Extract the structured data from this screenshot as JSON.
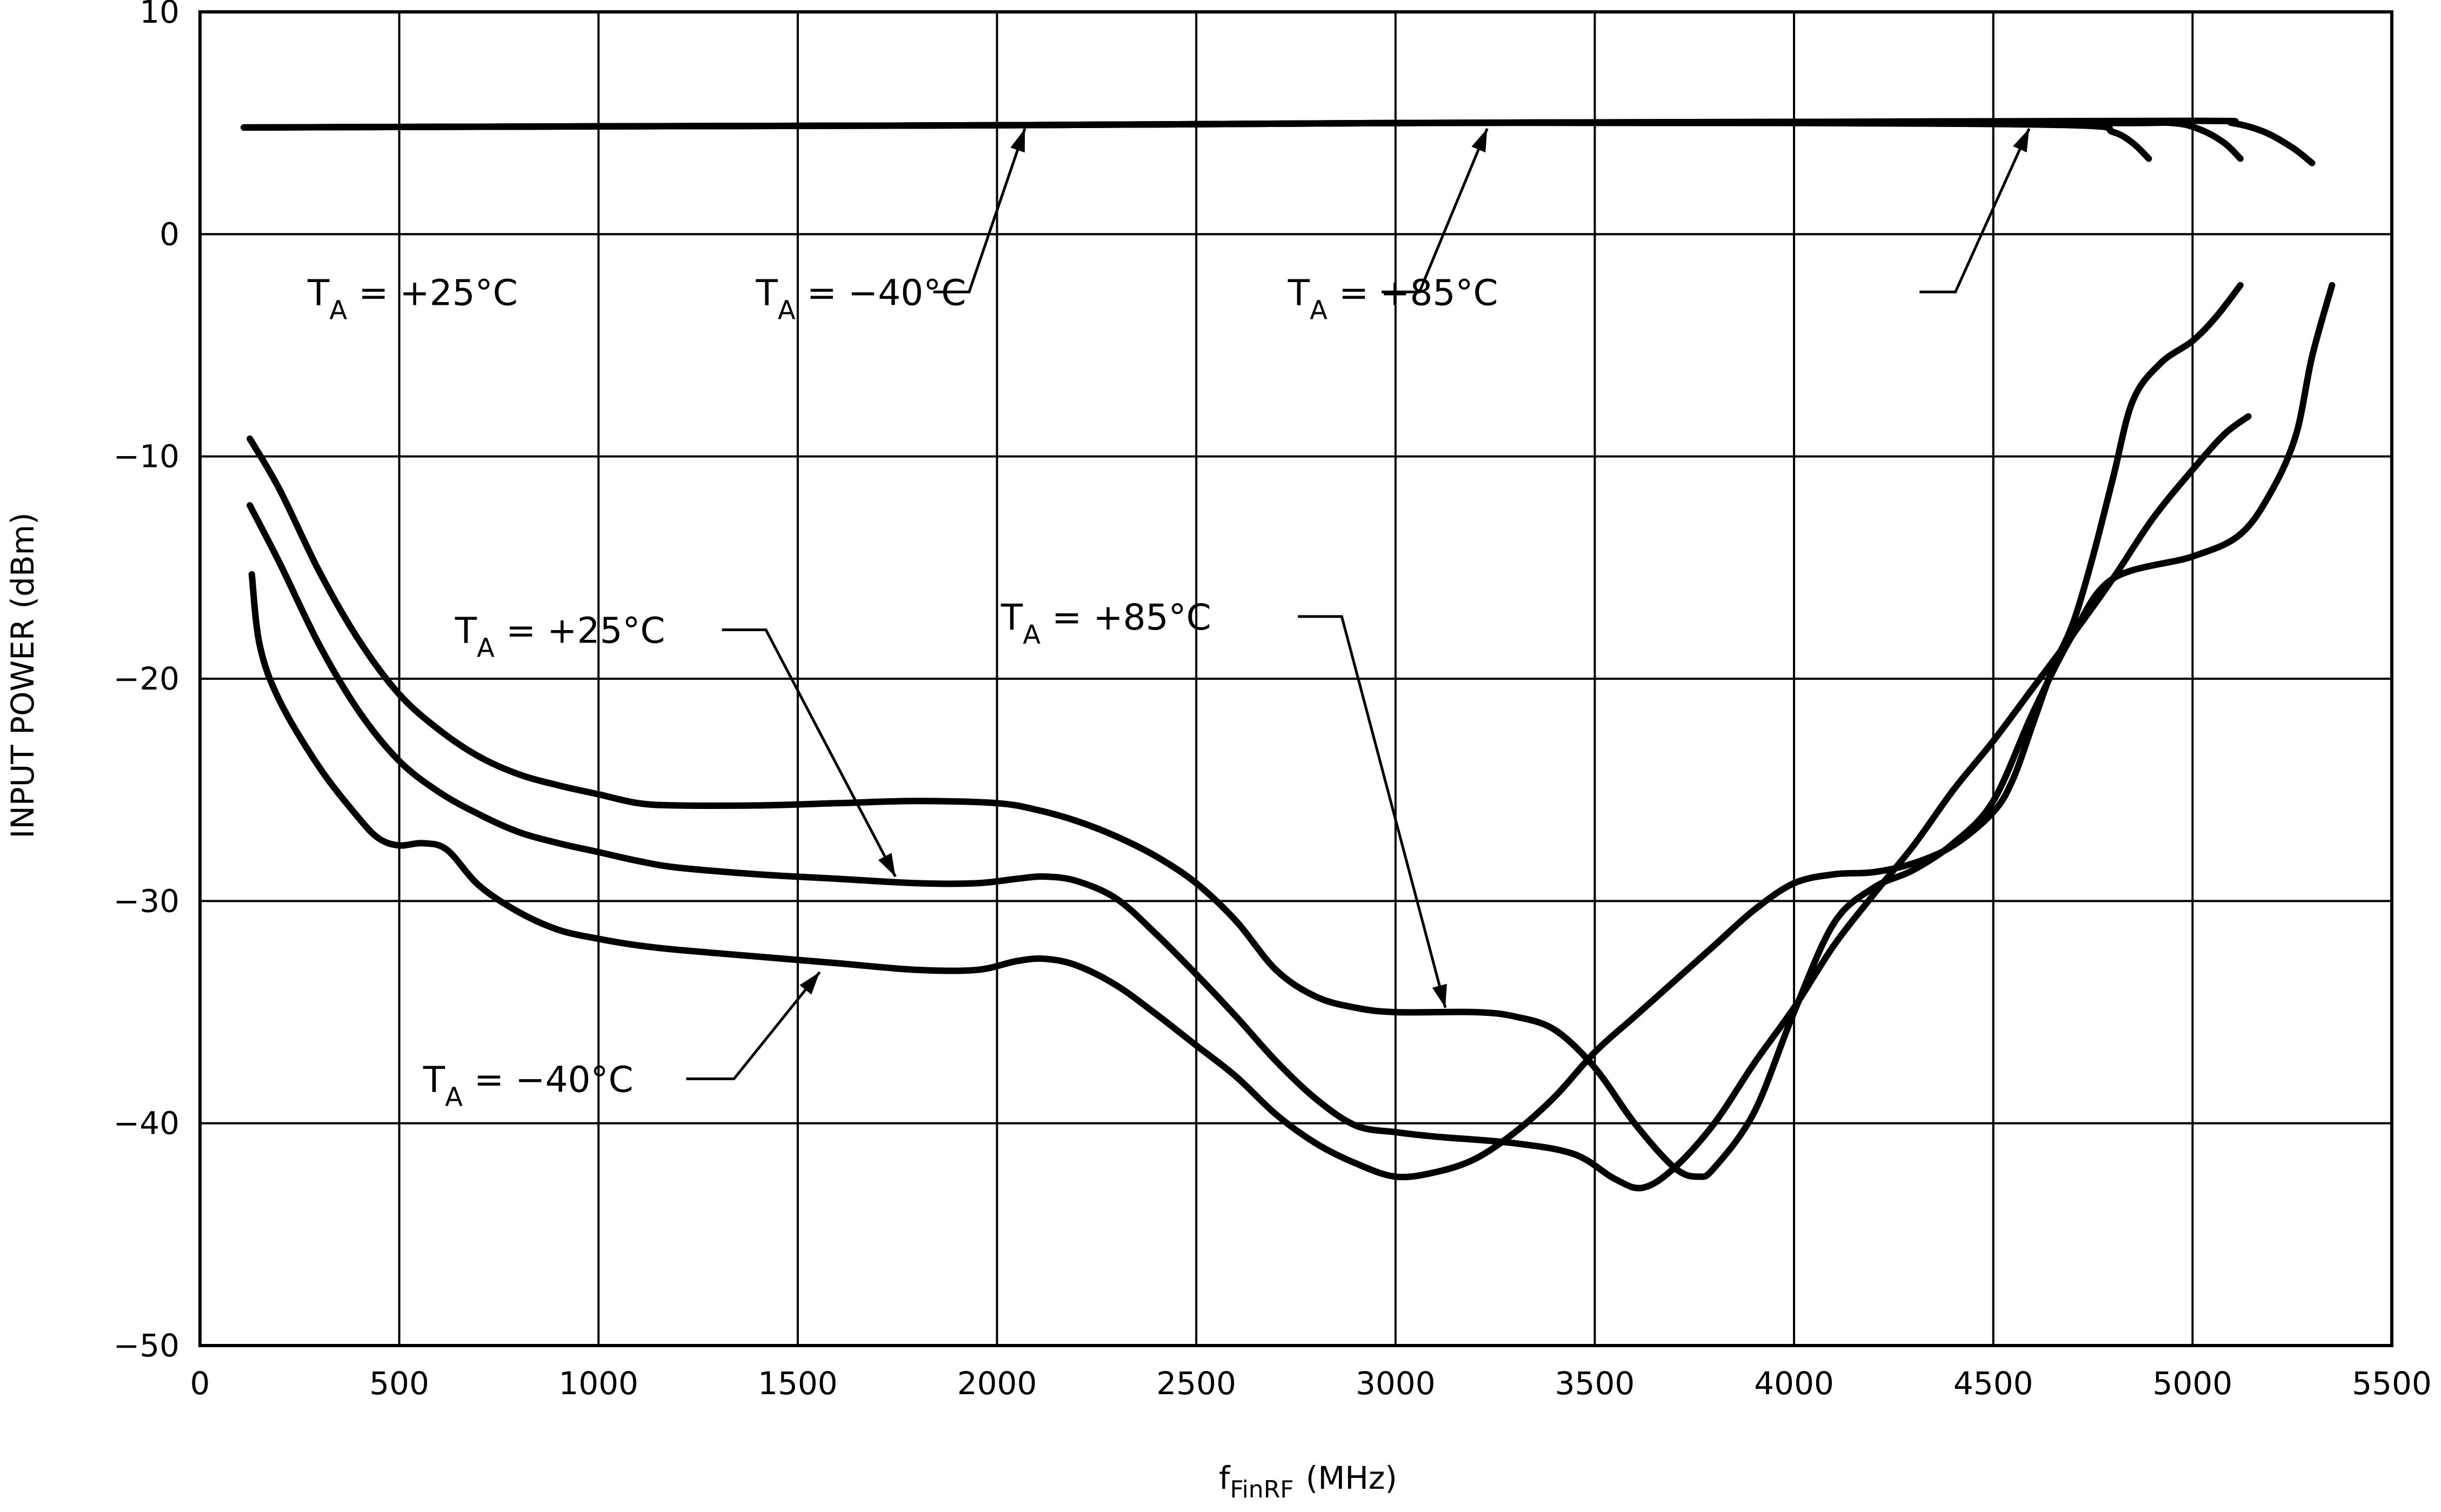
{
  "chart_data": {
    "type": "line",
    "xlabel": "f",
    "xlabel_sub": "FinRF",
    "xlabel_unit": "(MHz)",
    "ylabel": "INPUT POWER (dBm)",
    "xlim": [
      0,
      5500
    ],
    "ylim": [
      -50,
      10
    ],
    "grid": true,
    "x_ticks": [
      0,
      500,
      1000,
      1500,
      2000,
      2500,
      3000,
      3500,
      4000,
      4500,
      5000,
      5500
    ],
    "y_ticks": [
      10,
      0,
      -10,
      -20,
      -30,
      -40,
      -50
    ],
    "series": [
      {
        "name": "T_A = +25°C (max)",
        "points": [
          [
            110,
            4.8
          ],
          [
            1000,
            4.85
          ],
          [
            2000,
            4.9
          ],
          [
            3000,
            5.0
          ],
          [
            4000,
            5.0
          ],
          [
            4700,
            4.9
          ],
          [
            4800,
            4.6
          ],
          [
            4850,
            4.1
          ],
          [
            4890,
            3.4
          ]
        ]
      },
      {
        "name": "T_A = -40°C (max)",
        "points": [
          [
            110,
            4.8
          ],
          [
            1000,
            4.85
          ],
          [
            2000,
            4.9
          ],
          [
            3000,
            5.0
          ],
          [
            4000,
            5.05
          ],
          [
            4800,
            5.0
          ],
          [
            4950,
            5.0
          ],
          [
            5020,
            4.7
          ],
          [
            5080,
            4.1
          ],
          [
            5120,
            3.4
          ]
        ]
      },
      {
        "name": "T_A = +85°C (max)",
        "points": [
          [
            110,
            4.8
          ],
          [
            1000,
            4.85
          ],
          [
            2000,
            4.9
          ],
          [
            3000,
            5.0
          ],
          [
            4000,
            5.05
          ],
          [
            5000,
            5.1
          ],
          [
            5100,
            5.0
          ],
          [
            5180,
            4.6
          ],
          [
            5250,
            3.9
          ],
          [
            5300,
            3.2
          ]
        ]
      },
      {
        "name": "T_A = +85°C (min)",
        "points": [
          [
            125,
            -9.2
          ],
          [
            200,
            -11.5
          ],
          [
            300,
            -15.2
          ],
          [
            400,
            -18.3
          ],
          [
            500,
            -20.7
          ],
          [
            600,
            -22.3
          ],
          [
            700,
            -23.5
          ],
          [
            800,
            -24.3
          ],
          [
            900,
            -24.8
          ],
          [
            1000,
            -25.2
          ],
          [
            1100,
            -25.6
          ],
          [
            1200,
            -25.7
          ],
          [
            1400,
            -25.7
          ],
          [
            1600,
            -25.6
          ],
          [
            1800,
            -25.5
          ],
          [
            2000,
            -25.6
          ],
          [
            2100,
            -25.9
          ],
          [
            2200,
            -26.4
          ],
          [
            2300,
            -27.1
          ],
          [
            2400,
            -28.0
          ],
          [
            2500,
            -29.2
          ],
          [
            2600,
            -30.9
          ],
          [
            2700,
            -33.1
          ],
          [
            2800,
            -34.3
          ],
          [
            2900,
            -34.8
          ],
          [
            3000,
            -35.0
          ],
          [
            3200,
            -35.0
          ],
          [
            3300,
            -35.2
          ],
          [
            3400,
            -35.8
          ],
          [
            3500,
            -37.5
          ],
          [
            3600,
            -40.0
          ],
          [
            3700,
            -42.0
          ],
          [
            3760,
            -42.4
          ],
          [
            3800,
            -42.0
          ],
          [
            3900,
            -39.5
          ],
          [
            4000,
            -35.0
          ],
          [
            4100,
            -31.0
          ],
          [
            4200,
            -29.4
          ],
          [
            4300,
            -28.6
          ],
          [
            4400,
            -27.4
          ],
          [
            4500,
            -25.5
          ],
          [
            4600,
            -21.5
          ],
          [
            4700,
            -18.0
          ],
          [
            4800,
            -15.5
          ],
          [
            5000,
            -14.5
          ],
          [
            5120,
            -13.5
          ],
          [
            5200,
            -11.5
          ],
          [
            5260,
            -9.0
          ],
          [
            5300,
            -5.5
          ],
          [
            5350,
            -2.3
          ]
        ]
      },
      {
        "name": "T_A = +25°C (min)",
        "points": [
          [
            125,
            -12.2
          ],
          [
            200,
            -14.8
          ],
          [
            300,
            -18.5
          ],
          [
            400,
            -21.5
          ],
          [
            500,
            -23.7
          ],
          [
            600,
            -25.1
          ],
          [
            700,
            -26.1
          ],
          [
            800,
            -26.9
          ],
          [
            900,
            -27.4
          ],
          [
            1000,
            -27.8
          ],
          [
            1100,
            -28.2
          ],
          [
            1200,
            -28.5
          ],
          [
            1400,
            -28.8
          ],
          [
            1600,
            -29.0
          ],
          [
            1800,
            -29.2
          ],
          [
            1950,
            -29.2
          ],
          [
            2050,
            -29.0
          ],
          [
            2120,
            -28.9
          ],
          [
            2200,
            -29.1
          ],
          [
            2300,
            -29.9
          ],
          [
            2400,
            -31.5
          ],
          [
            2500,
            -33.3
          ],
          [
            2600,
            -35.2
          ],
          [
            2700,
            -37.2
          ],
          [
            2800,
            -38.9
          ],
          [
            2900,
            -40.1
          ],
          [
            3000,
            -40.4
          ],
          [
            3100,
            -40.6
          ],
          [
            3300,
            -40.9
          ],
          [
            3450,
            -41.4
          ],
          [
            3550,
            -42.5
          ],
          [
            3620,
            -42.9
          ],
          [
            3700,
            -42.0
          ],
          [
            3800,
            -40.0
          ],
          [
            3900,
            -37.3
          ],
          [
            4000,
            -34.8
          ],
          [
            4100,
            -32.0
          ],
          [
            4200,
            -29.7
          ],
          [
            4300,
            -27.5
          ],
          [
            4400,
            -25.0
          ],
          [
            4500,
            -22.8
          ],
          [
            4600,
            -20.4
          ],
          [
            4700,
            -18.0
          ],
          [
            4800,
            -15.5
          ],
          [
            4900,
            -12.8
          ],
          [
            5000,
            -10.6
          ],
          [
            5080,
            -9.0
          ],
          [
            5140,
            -8.2
          ]
        ]
      },
      {
        "name": "T_A = -40°C (min)",
        "points": [
          [
            130,
            -15.3
          ],
          [
            150,
            -18.5
          ],
          [
            200,
            -21.0
          ],
          [
            300,
            -24.0
          ],
          [
            400,
            -26.3
          ],
          [
            450,
            -27.2
          ],
          [
            500,
            -27.5
          ],
          [
            560,
            -27.4
          ],
          [
            620,
            -27.7
          ],
          [
            700,
            -29.3
          ],
          [
            800,
            -30.5
          ],
          [
            900,
            -31.3
          ],
          [
            1000,
            -31.7
          ],
          [
            1100,
            -32.0
          ],
          [
            1200,
            -32.2
          ],
          [
            1400,
            -32.5
          ],
          [
            1600,
            -32.8
          ],
          [
            1800,
            -33.1
          ],
          [
            1950,
            -33.1
          ],
          [
            2050,
            -32.7
          ],
          [
            2120,
            -32.6
          ],
          [
            2200,
            -32.9
          ],
          [
            2300,
            -33.8
          ],
          [
            2400,
            -35.1
          ],
          [
            2500,
            -36.5
          ],
          [
            2600,
            -37.9
          ],
          [
            2700,
            -39.6
          ],
          [
            2800,
            -40.9
          ],
          [
            2900,
            -41.8
          ],
          [
            3000,
            -42.4
          ],
          [
            3100,
            -42.2
          ],
          [
            3200,
            -41.6
          ],
          [
            3300,
            -40.4
          ],
          [
            3400,
            -38.8
          ],
          [
            3500,
            -36.8
          ],
          [
            3600,
            -35.2
          ],
          [
            3700,
            -33.6
          ],
          [
            3800,
            -32.0
          ],
          [
            3900,
            -30.4
          ],
          [
            4000,
            -29.2
          ],
          [
            4100,
            -28.8
          ],
          [
            4200,
            -28.7
          ],
          [
            4300,
            -28.3
          ],
          [
            4400,
            -27.5
          ],
          [
            4500,
            -26.0
          ],
          [
            4550,
            -24.5
          ],
          [
            4600,
            -22.0
          ],
          [
            4650,
            -19.5
          ],
          [
            4700,
            -17.5
          ],
          [
            4750,
            -14.5
          ],
          [
            4800,
            -11.0
          ],
          [
            4850,
            -7.5
          ],
          [
            4920,
            -5.8
          ],
          [
            5000,
            -4.8
          ],
          [
            5060,
            -3.7
          ],
          [
            5120,
            -2.3
          ]
        ]
      }
    ],
    "annotations": [
      {
        "label": "T",
        "sub": "A",
        "rest": " = +25°C",
        "text_at": [
          270,
          -2.6
        ],
        "line_from": [
          1840,
          -2.6
        ],
        "elbow": [
          1840,
          -2.6
        ],
        "elbow2": [
          1930,
          -2.6
        ],
        "arrow_to": [
          2070,
          4.75
        ]
      },
      {
        "label": "T",
        "sub": "A",
        "rest": " = -40°C",
        "text_at": [
          1395,
          -2.6
        ],
        "line_from": [
          2965,
          -2.6
        ],
        "elbow": [
          2965,
          -2.6
        ],
        "elbow2": [
          3060,
          -2.6
        ],
        "arrow_to": [
          3230,
          4.75
        ]
      },
      {
        "label": "T",
        "sub": "A",
        "rest": " = +85°C",
        "text_at": [
          2730,
          -2.6
        ],
        "line_from": [
          4315,
          -2.6
        ],
        "elbow": [
          4315,
          -2.6
        ],
        "elbow2": [
          4405,
          -2.6
        ],
        "arrow_to": [
          4590,
          4.75
        ]
      },
      {
        "label": "T",
        "sub": "A",
        "rest": " = +25°C",
        "text_at": [
          640,
          -17.8
        ],
        "line_from": [
          1310,
          -17.8
        ],
        "elbow": [
          1310,
          -17.8
        ],
        "elbow2": [
          1420,
          -17.8
        ],
        "arrow_to": [
          1745,
          -28.9
        ]
      },
      {
        "label": "T",
        "sub": "A",
        "rest": " = +85°C",
        "text_at": [
          2010,
          -17.2
        ],
        "line_from": [
          2755,
          -17.2
        ],
        "elbow": [
          2755,
          -17.2
        ],
        "elbow2": [
          2865,
          -17.2
        ],
        "arrow_to": [
          3125,
          -34.8
        ]
      },
      {
        "label": "T",
        "sub": "A",
        "rest": " = -40°C",
        "text_at": [
          560,
          -38.0
        ],
        "line_from": [
          1220,
          -38.0
        ],
        "elbow": [
          1220,
          -38.0
        ],
        "elbow2": [
          1340,
          -38.0
        ],
        "arrow_to": [
          1555,
          -33.2
        ]
      }
    ]
  }
}
